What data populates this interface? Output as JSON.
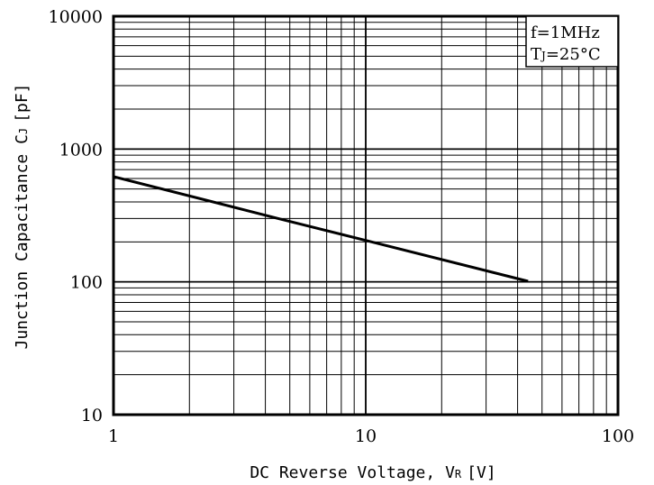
{
  "chart_data": {
    "type": "line",
    "x_scale": "log",
    "y_scale": "log",
    "xlim": [
      1,
      100
    ],
    "ylim": [
      10,
      10000
    ],
    "x_ticks": [
      "1",
      "10",
      "100"
    ],
    "y_ticks": [
      "10",
      "100",
      "1000",
      "10000"
    ],
    "xlabel": "DC Reverse Voltage, V",
    "xlabel_sub": "R",
    "xlabel_unit": "[V]",
    "ylabel": "Junction Capacitance C",
    "ylabel_sub": "J",
    "ylabel_unit": "[pF]",
    "grid": true,
    "legend_placement": "top-right",
    "annotation": {
      "line1": "f=1MHz",
      "line2_prefix": "T",
      "line2_sub": "J",
      "line2_value": "=25°C"
    },
    "series": [
      {
        "points": [
          [
            1,
            620
          ],
          [
            4.5,
            300
          ],
          [
            10,
            205
          ],
          [
            44,
            101
          ]
        ]
      }
    ]
  }
}
